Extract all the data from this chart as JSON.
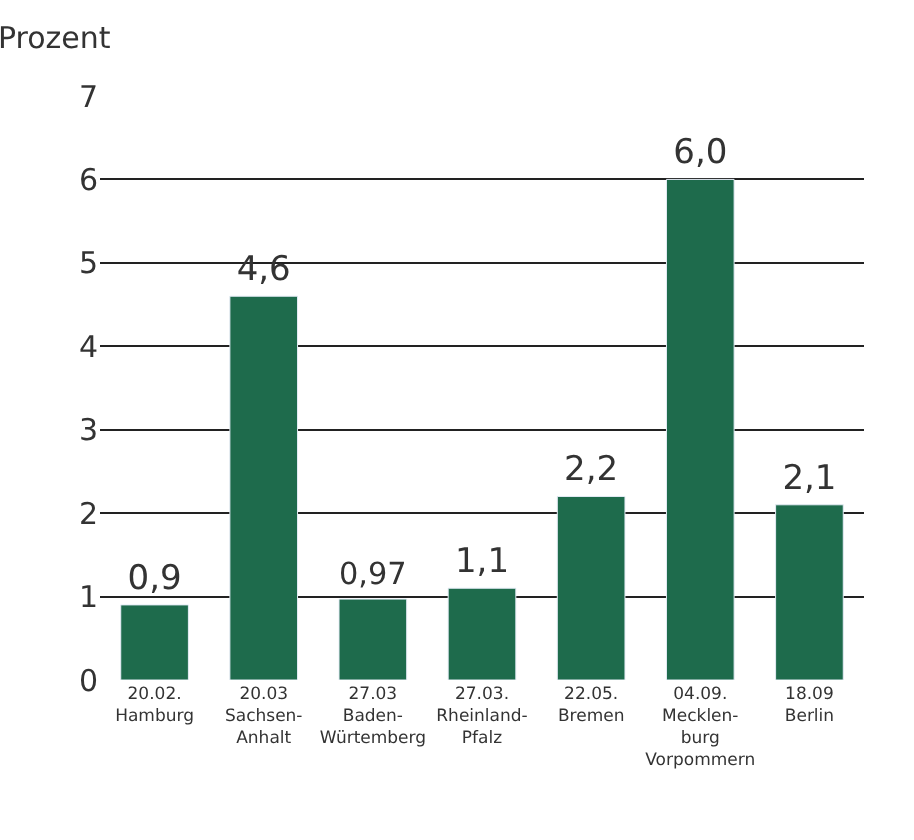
{
  "chart_data": {
    "type": "bar",
    "ylabel": "Prozent",
    "categories": [
      "20.02.\nHamburg",
      "20.03\nSachsen-\nAnhalt",
      "27.03\nBaden-\nWürtemberg",
      "27.03.\nRheinland-\nPfalz",
      "22.05.\nBremen",
      "04.09.\nMecklen-\nburg\nVorpommern",
      "18.09\nBerlin"
    ],
    "values": [
      0.9,
      4.6,
      0.97,
      1.1,
      2.2,
      6.0,
      2.1
    ],
    "value_labels": [
      "0,9",
      "4,6",
      "0,97",
      "1,1",
      "2,2",
      "6,0",
      "2,1"
    ],
    "color": "#1e6b4c",
    "ylim": [
      0,
      7
    ],
    "yticks": [
      0,
      1,
      2,
      3,
      4,
      5,
      6,
      7
    ],
    "grid": "y"
  }
}
